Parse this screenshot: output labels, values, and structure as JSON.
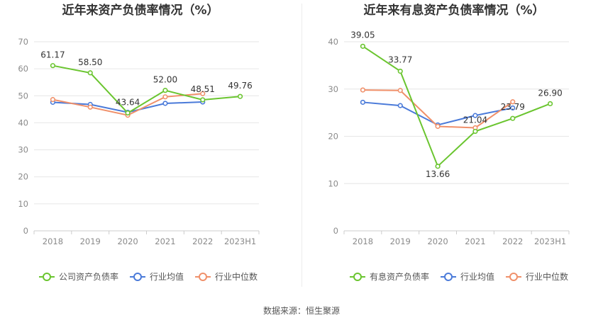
{
  "chart_data": [
    {
      "type": "line",
      "title": "近年来资产负债率情况（%）",
      "categories": [
        "2018",
        "2019",
        "2020",
        "2021",
        "2022",
        "2023H1"
      ],
      "ylim": [
        0,
        70
      ],
      "yticks": [
        0,
        10,
        20,
        30,
        40,
        50,
        60,
        70
      ],
      "grid": true,
      "legend_position": "bottom",
      "series": [
        {
          "name": "公司资产负债率",
          "color": "#6ac52f",
          "values": [
            61.17,
            58.5,
            43.64,
            52.0,
            48.51,
            49.76
          ],
          "labels": [
            "61.17",
            "58.50",
            "43.64",
            "52.00",
            "48.51",
            "49.76"
          ]
        },
        {
          "name": "行业均值",
          "color": "#4a7ad9",
          "values": [
            47.6,
            46.8,
            43.9,
            47.2,
            47.7,
            null
          ]
        },
        {
          "name": "行业中位数",
          "color": "#f0906a",
          "values": [
            48.6,
            45.8,
            42.8,
            49.6,
            50.8,
            null
          ]
        }
      ]
    },
    {
      "type": "line",
      "title": "近年来有息资产负债率情况（%）",
      "categories": [
        "2018",
        "2019",
        "2020",
        "2021",
        "2022",
        "2023H1"
      ],
      "ylim": [
        0,
        40
      ],
      "yticks": [
        0,
        10,
        20,
        30,
        40
      ],
      "grid": true,
      "legend_position": "bottom",
      "series": [
        {
          "name": "有息资产负债率",
          "color": "#6ac52f",
          "values": [
            39.05,
            33.77,
            13.66,
            21.04,
            23.79,
            26.9
          ],
          "labels": [
            "39.05",
            "33.77",
            "13.66",
            "21.04",
            "23.79",
            "26.90"
          ]
        },
        {
          "name": "行业均值",
          "color": "#4a7ad9",
          "values": [
            27.2,
            26.5,
            22.4,
            24.4,
            26.0,
            null
          ]
        },
        {
          "name": "行业中位数",
          "color": "#f0906a",
          "values": [
            29.8,
            29.7,
            22.1,
            21.8,
            27.3,
            null
          ]
        }
      ]
    }
  ],
  "footer": {
    "source": "数据来源：恒生聚源"
  }
}
